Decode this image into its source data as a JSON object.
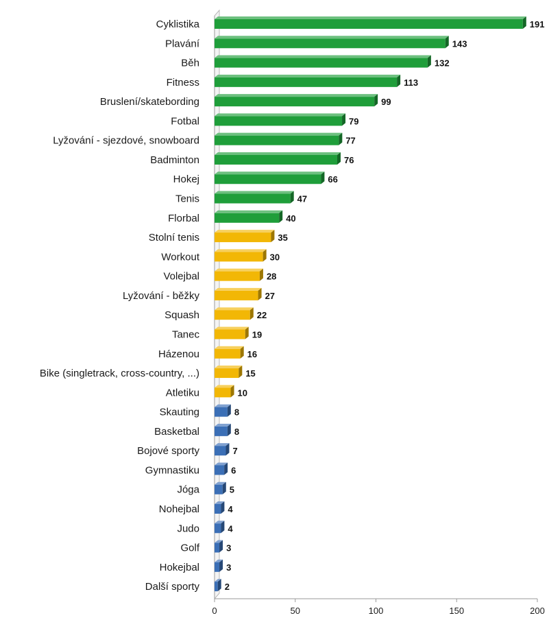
{
  "chart_data": {
    "type": "bar",
    "orientation": "horizontal",
    "categories": [
      "Cyklistika",
      "Plavání",
      "Běh",
      "Fitness",
      "Bruslení/skatebording",
      "Fotbal",
      "Lyžování - sjezdové, snowboard",
      "Badminton",
      "Hokej",
      "Tenis",
      "Florbal",
      "Stolní tenis",
      "Workout",
      "Volejbal",
      "Lyžování - běžky",
      "Squash",
      "Tanec",
      "Házenou",
      "Bike (singletrack, cross-country, ...)",
      "Atletiku",
      "Skauting",
      "Basketbal",
      "Bojové sporty",
      "Gymnastiku",
      "Jóga",
      "Nohejbal",
      "Judo",
      "Golf",
      "Hokejbal",
      "Další sporty"
    ],
    "values": [
      191,
      143,
      132,
      113,
      99,
      79,
      77,
      76,
      66,
      47,
      40,
      35,
      30,
      28,
      27,
      22,
      19,
      16,
      15,
      10,
      8,
      8,
      7,
      6,
      5,
      4,
      4,
      3,
      3,
      2
    ],
    "bar_colors": [
      "#1f9e3a",
      "#1f9e3a",
      "#1f9e3a",
      "#1f9e3a",
      "#1f9e3a",
      "#1f9e3a",
      "#1f9e3a",
      "#1f9e3a",
      "#1f9e3a",
      "#1f9e3a",
      "#1f9e3a",
      "#f2b705",
      "#f2b705",
      "#f2b705",
      "#f2b705",
      "#f2b705",
      "#f2b705",
      "#f2b705",
      "#f2b705",
      "#f2b705",
      "#3b6fb6",
      "#3b6fb6",
      "#3b6fb6",
      "#3b6fb6",
      "#3b6fb6",
      "#3b6fb6",
      "#3b6fb6",
      "#3b6fb6",
      "#3b6fb6",
      "#3b6fb6"
    ],
    "xlim": [
      0,
      200
    ],
    "xticks": [
      0,
      50,
      100,
      150,
      200
    ],
    "grid": false,
    "legend": "none",
    "data_labels": true,
    "title": "",
    "xlabel": "",
    "ylabel": ""
  }
}
